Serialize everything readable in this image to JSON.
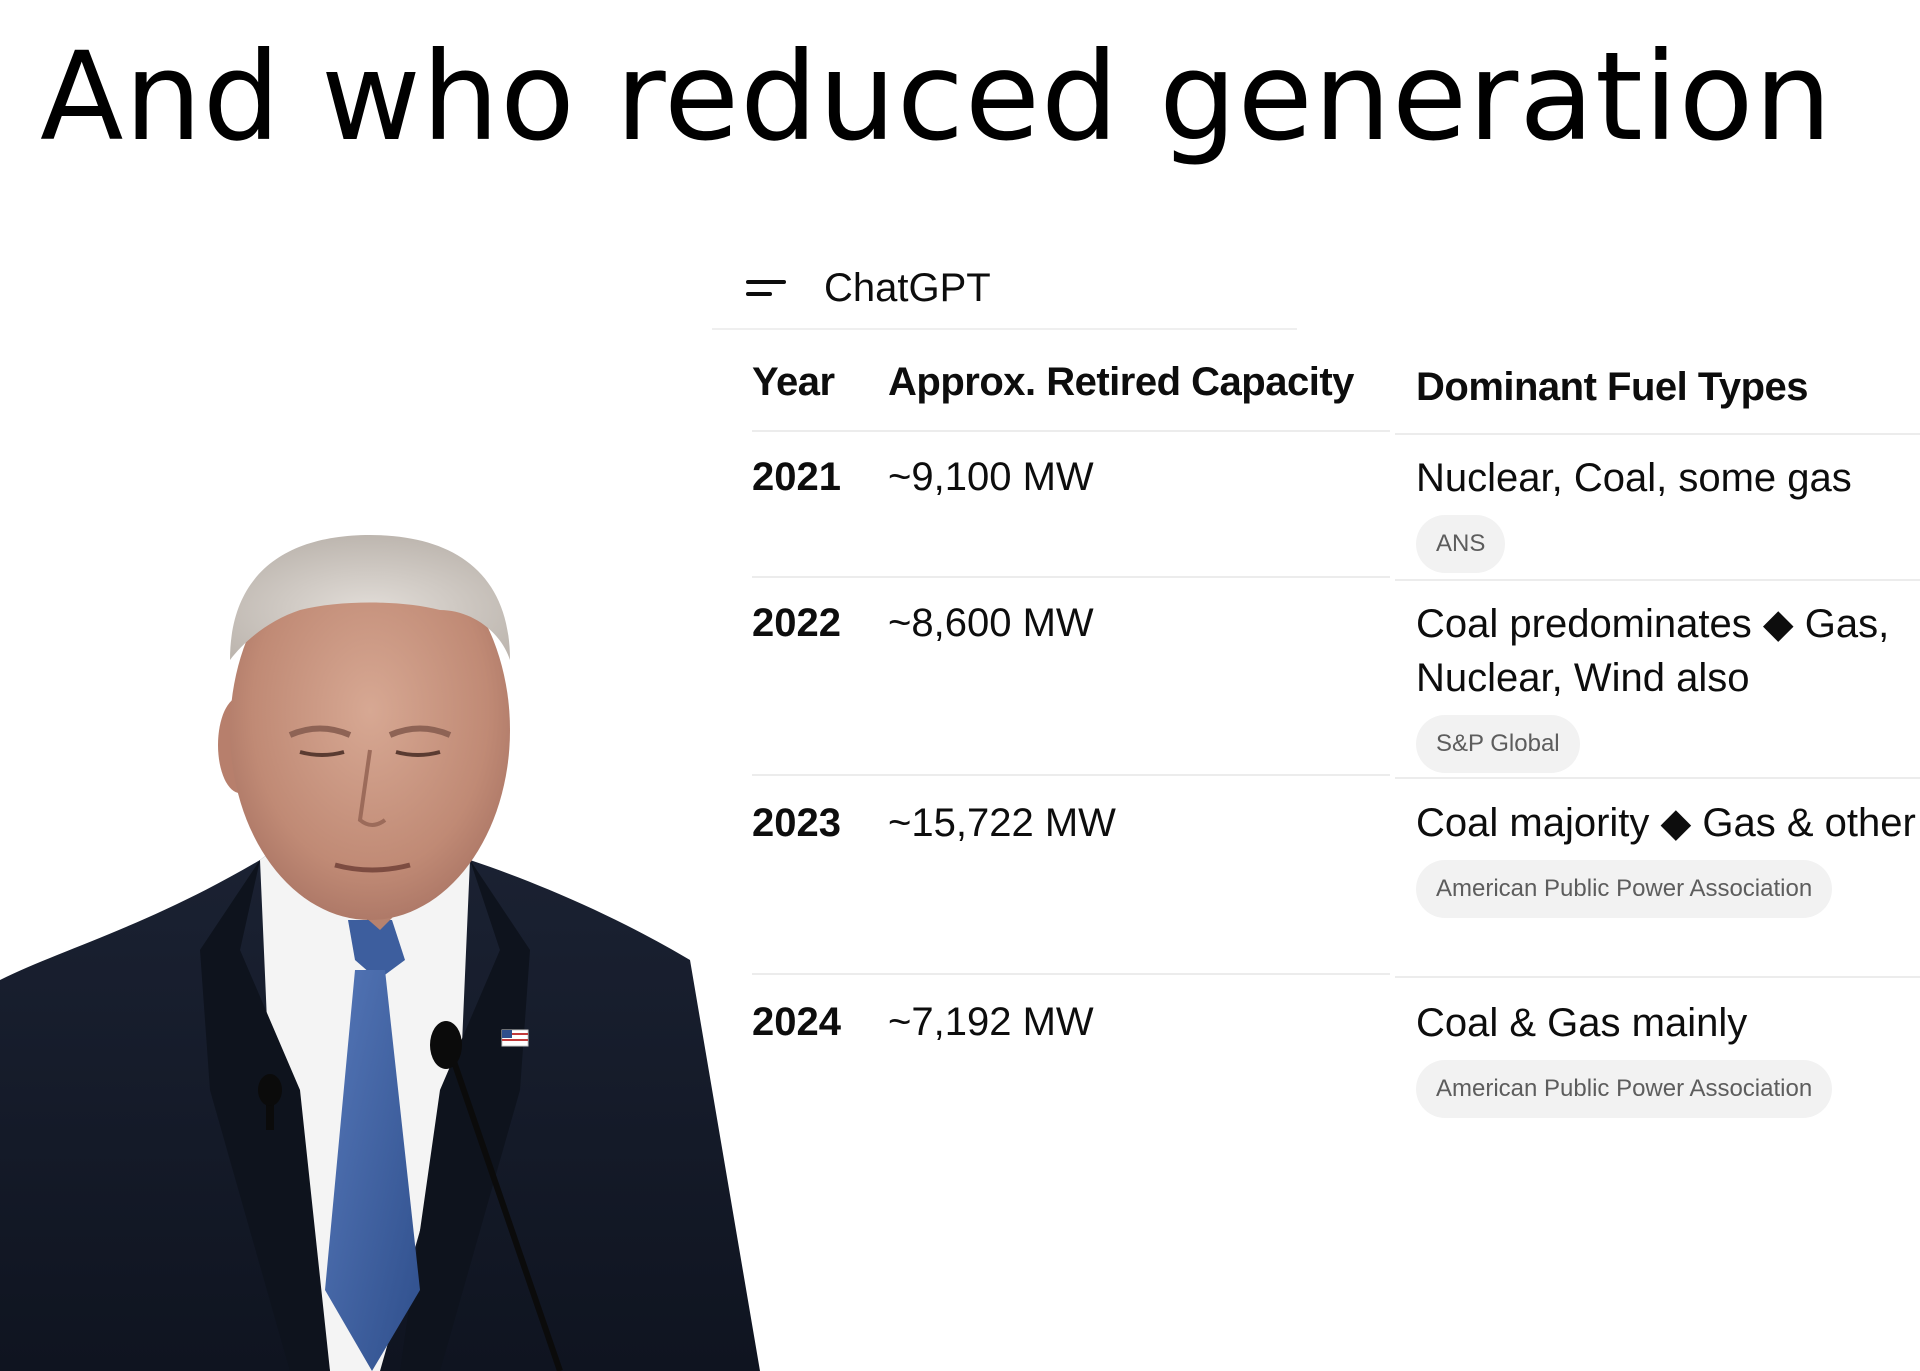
{
  "caption": "And who reduced generation",
  "app": {
    "title": "ChatGPT",
    "menu_icon": "menu-icon"
  },
  "table": {
    "headers": {
      "year": "Year",
      "capacity": "Approx. Retired Capacity",
      "fuel": "Dominant Fuel Types"
    },
    "rows": [
      {
        "year": "2021",
        "capacity": "~9,100 MW",
        "fuel": "Nuclear, Coal, some gas",
        "source": "ANS"
      },
      {
        "year": "2022",
        "capacity": "~8,600 MW",
        "fuel": "Coal predominates ◆ Gas, Nuclear, Wind also",
        "source": "S&P Global"
      },
      {
        "year": "2023",
        "capacity": "~15,722 MW",
        "fuel": "Coal majority ◆ Gas & other",
        "source": "American Public Power Association"
      },
      {
        "year": "2024",
        "capacity": "~7,192 MW",
        "fuel": "Coal & Gas mainly",
        "source": "American Public Power Association"
      }
    ]
  },
  "photo": {
    "subject": "man-in-suit-photo",
    "colors": {
      "suit": "#141a26",
      "tie": "#3f63a6",
      "shirt": "#f4f4f4",
      "skin": "#c99a86",
      "hair": "#d7d2cd"
    }
  }
}
